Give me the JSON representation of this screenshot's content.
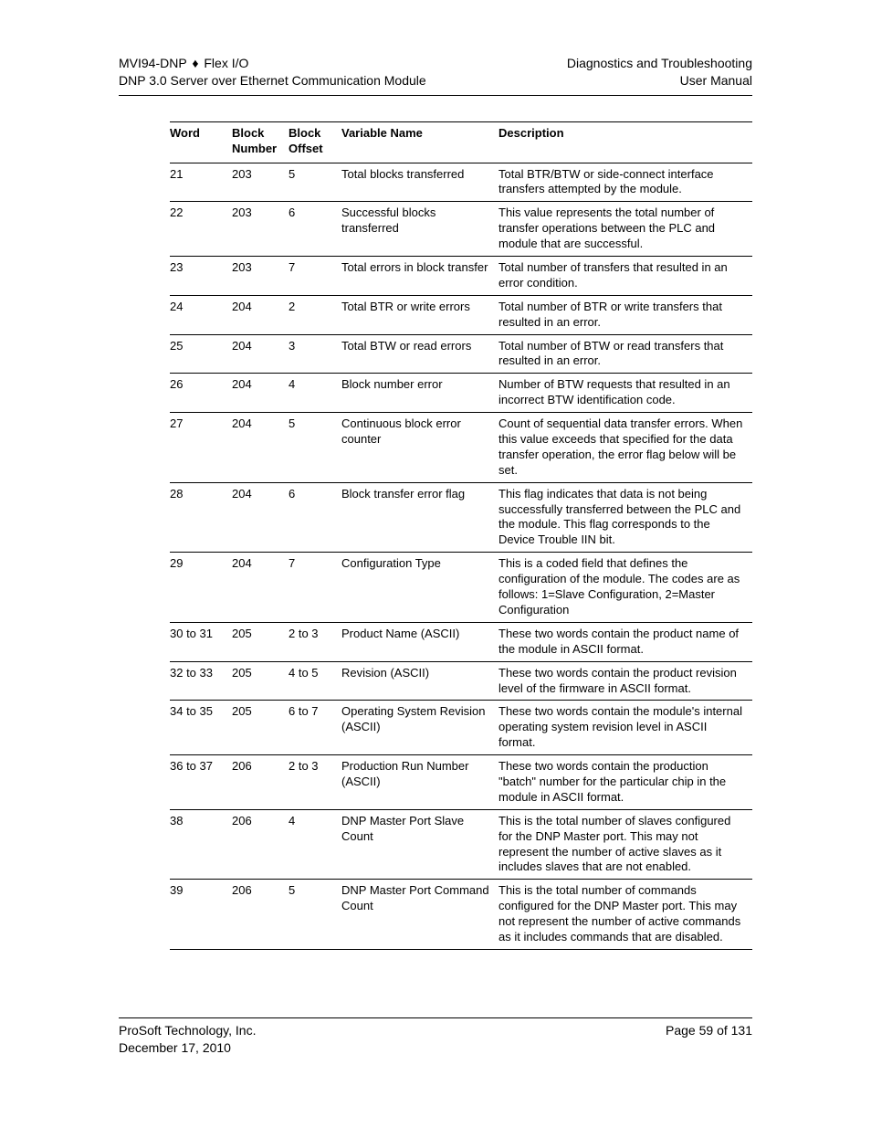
{
  "header": {
    "left_line1_a": "MVI94-DNP",
    "left_line1_sep": "♦",
    "left_line1_b": "Flex I/O",
    "left_line2": "DNP 3.0 Server over Ethernet Communication Module",
    "right_line1": "Diagnostics and Troubleshooting",
    "right_line2": "User Manual"
  },
  "table": {
    "columns": {
      "word": "Word",
      "block_number_l1": "Block",
      "block_number_l2": "Number",
      "block_offset_l1": "Block",
      "block_offset_l2": "Offset",
      "variable_name": "Variable Name",
      "description": "Description"
    },
    "rows": [
      {
        "word": "21",
        "block_number": "203",
        "block_offset": "5",
        "variable_name": "Total blocks transferred",
        "description": "Total BTR/BTW or side-connect interface transfers attempted by the module."
      },
      {
        "word": "22",
        "block_number": "203",
        "block_offset": "6",
        "variable_name": "Successful blocks transferred",
        "description": "This value represents the total number of transfer operations between the PLC and module that are successful."
      },
      {
        "word": "23",
        "block_number": "203",
        "block_offset": "7",
        "variable_name": "Total errors in block transfer",
        "description": "Total number of transfers that resulted in an error condition."
      },
      {
        "word": "24",
        "block_number": "204",
        "block_offset": "2",
        "variable_name": "Total BTR or write errors",
        "description": "Total number of BTR or write transfers that resulted in an error."
      },
      {
        "word": "25",
        "block_number": "204",
        "block_offset": "3",
        "variable_name": "Total BTW or read errors",
        "description": "Total number of BTW or read transfers that resulted in an error."
      },
      {
        "word": "26",
        "block_number": "204",
        "block_offset": "4",
        "variable_name": "Block number error",
        "description": "Number of BTW requests that resulted in an incorrect BTW identification code."
      },
      {
        "word": "27",
        "block_number": "204",
        "block_offset": "5",
        "variable_name": "Continuous block error counter",
        "description": "Count of sequential data transfer errors. When this value exceeds that specified for the data transfer operation, the error flag below will be set."
      },
      {
        "word": "28",
        "block_number": "204",
        "block_offset": "6",
        "variable_name": "Block transfer error flag",
        "description": "This flag indicates that data is not being successfully transferred between the PLC and the module. This flag corresponds to the Device Trouble IIN bit."
      },
      {
        "word": "29",
        "block_number": "204",
        "block_offset": "7",
        "variable_name": "Configuration Type",
        "description": "This is a coded field that defines the configuration of the module. The codes are as follows: 1=Slave Configuration, 2=Master Configuration"
      },
      {
        "word": "30 to 31",
        "block_number": "205",
        "block_offset": "2 to 3",
        "variable_name": "Product Name (ASCII)",
        "description": "These two words contain the product name of the module in ASCII format."
      },
      {
        "word": "32 to 33",
        "block_number": "205",
        "block_offset": "4 to 5",
        "variable_name": "Revision (ASCII)",
        "description": "These two words contain the product revision level of the firmware in ASCII format."
      },
      {
        "word": "34 to 35",
        "block_number": "205",
        "block_offset": "6 to 7",
        "variable_name": "Operating System Revision (ASCII)",
        "description": "These two words contain the module's internal operating system revision level in ASCII format."
      },
      {
        "word": "36 to 37",
        "block_number": "206",
        "block_offset": "2 to 3",
        "variable_name": "Production Run Number (ASCII)",
        "description": "These two words contain the production \"batch\" number for the particular chip in the module in ASCII format."
      },
      {
        "word": "38",
        "block_number": "206",
        "block_offset": "4",
        "variable_name": "DNP Master Port Slave Count",
        "description": "This is the total number of slaves configured for the DNP Master port. This may not represent the number of active slaves as it includes slaves that are not enabled."
      },
      {
        "word": "39",
        "block_number": "206",
        "block_offset": "5",
        "variable_name": "DNP Master Port Command Count",
        "description": "This is the total number of commands configured for the DNP Master port. This may not represent the number of active commands as it includes commands that are disabled."
      }
    ]
  },
  "footer": {
    "left_line1": "ProSoft Technology, Inc.",
    "left_line2": "December 17, 2010",
    "right_line1": "Page 59 of 131"
  }
}
